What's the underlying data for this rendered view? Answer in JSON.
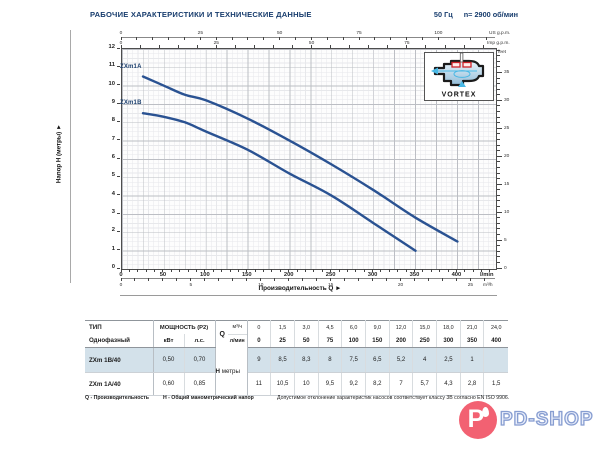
{
  "header": {
    "title": "РАБОЧИЕ ХАРАКТЕРИСТИКИ И ТЕХНИЧЕСКИЕ ДАННЫЕ",
    "frequency": "50 Гц",
    "speed": "n= 2900 об/мин"
  },
  "chart_data": {
    "type": "line",
    "xlabel": "Производительность Q  ►",
    "ylabel": "Напор H (метры)  ►",
    "ylim": [
      0,
      12
    ],
    "xlim_lmin": [
      0,
      446
    ],
    "grid": true,
    "curve_color": "#2a5292",
    "series": [
      {
        "name": "ZXm1A",
        "x_lmin": [
          25,
          50,
          75,
          100,
          150,
          200,
          250,
          300,
          350,
          400
        ],
        "h_m": [
          10.5,
          10,
          9.5,
          9.2,
          8.2,
          7,
          5.7,
          4.3,
          2.8,
          1.5
        ]
      },
      {
        "name": "ZXm1B",
        "x_lmin": [
          25,
          50,
          75,
          100,
          150,
          200,
          250,
          300,
          350
        ],
        "h_m": [
          8.5,
          8.3,
          8,
          7.5,
          6.5,
          5.2,
          4,
          2.5,
          1
        ]
      }
    ],
    "axis_units": {
      "bottom_primary": "l/min",
      "bottom_secondary": "m³/h",
      "top_primary": "US g.p.m.",
      "top_secondary": "Imp g.p.m.",
      "right": "feet"
    },
    "tick_values": {
      "h_m": [
        0,
        1,
        2,
        3,
        4,
        5,
        6,
        7,
        8,
        9,
        10,
        11,
        12
      ],
      "lmin": [
        0,
        50,
        100,
        150,
        200,
        250,
        300,
        350,
        400
      ],
      "m3h": [
        0,
        5,
        10,
        15,
        20,
        25
      ],
      "us_gpm": [
        0,
        25,
        50,
        75,
        100
      ],
      "imp_gpm": [
        0,
        25,
        50,
        75
      ],
      "feet": [
        0,
        5,
        10,
        15,
        20,
        25,
        30,
        35
      ]
    },
    "inset_label": "VORTEX"
  },
  "table": {
    "type_header": "ТИП",
    "phase_header": "Однофазный",
    "power_header": "МОЩНОСТЬ (P2)",
    "kw_header": "кВт",
    "hp_header": "л.с.",
    "q_symbol": "Q",
    "q_unit_top": "м³/ч",
    "q_unit_bottom": "л/мин",
    "h_symbol": "Н",
    "h_unit": "метры",
    "q_m3h": [
      "0",
      "1,5",
      "3,0",
      "4,5",
      "6,0",
      "9,0",
      "12,0",
      "15,0",
      "18,0",
      "21,0",
      "24,0"
    ],
    "q_lmin": [
      "0",
      "25",
      "50",
      "75",
      "100",
      "150",
      "200",
      "250",
      "300",
      "350",
      "400"
    ],
    "rows": [
      {
        "type": "ZXm 1B/40",
        "kw": "0,50",
        "hp": "0,70",
        "h_values": [
          "9",
          "8,5",
          "8,3",
          "8",
          "7,5",
          "6,5",
          "5,2",
          "4",
          "2,5",
          "1",
          ""
        ]
      },
      {
        "type": "ZXm 1A/40",
        "kw": "0,60",
        "hp": "0,85",
        "h_values": [
          "11",
          "10,5",
          "10",
          "9,5",
          "9,2",
          "8,2",
          "7",
          "5,7",
          "4,3",
          "2,8",
          "1,5"
        ]
      }
    ]
  },
  "footnotes": {
    "q_term": "Q - Производительность",
    "h_term": "Н - Общий манометрический напор",
    "tolerance": "Допустимое отклонение характеристик насосов соответствует классу 3В согласно EN ISO 9906."
  },
  "watermark": {
    "initial": "P",
    "text": "PD-SHOP"
  },
  "colors": {
    "heading_navy": "#173c6d",
    "curve_blue": "#2a5292",
    "row_shade": "#d3e1ea",
    "watermark_red": "#f2596b",
    "watermark_blue": "#8299cf"
  }
}
